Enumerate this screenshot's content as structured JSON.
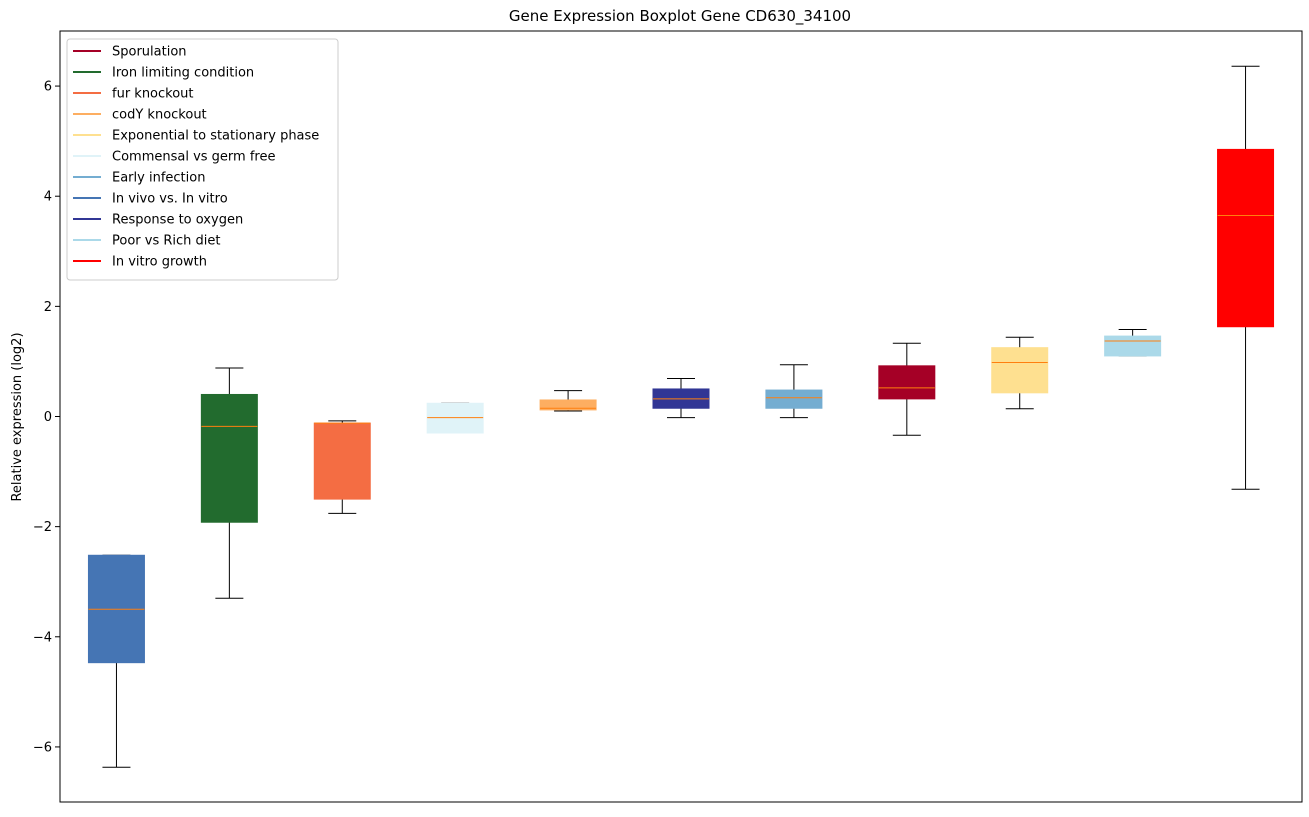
{
  "chart_data": {
    "type": "boxplot",
    "title": "Gene Expression Boxplot Gene CD630_34100",
    "xlabel": "",
    "ylabel": "Relative expression (log2)",
    "ylim": [
      -7,
      7
    ],
    "yticks": [
      -6,
      -4,
      -2,
      0,
      2,
      4,
      6
    ],
    "x_ticks_shown": false,
    "grid": false,
    "legend_placement": "upper-left",
    "median_color": "#ff7f0e",
    "legend": [
      {
        "label": "Sporulation",
        "color": "#a50026"
      },
      {
        "label": "Iron limiting condition",
        "color": "#226b2e"
      },
      {
        "label": "fur knockout",
        "color": "#f46d43"
      },
      {
        "label": "codY knockout",
        "color": "#fdae61"
      },
      {
        "label": "Exponential to stationary phase",
        "color": "#fee090"
      },
      {
        "label": "Commensal vs germ free",
        "color": "#e0f3f8"
      },
      {
        "label": "Early infection",
        "color": "#74add1"
      },
      {
        "label": "In vivo vs. In vitro",
        "color": "#4575b4"
      },
      {
        "label": "Response to oxygen",
        "color": "#313695"
      },
      {
        "label": "Poor vs Rich diet",
        "color": "#abd9e9"
      },
      {
        "label": "In vitro growth",
        "color": "#ff0000"
      }
    ],
    "boxes": [
      {
        "series": "In vivo vs. In vitro",
        "color": "#4575b4",
        "whisker_low": -6.37,
        "q1": -4.47,
        "median": -3.5,
        "q3": -2.52,
        "whisker_high": -2.52
      },
      {
        "series": "Iron limiting condition",
        "color": "#226b2e",
        "whisker_low": -3.3,
        "q1": -1.92,
        "median": -0.18,
        "q3": 0.4,
        "whisker_high": 0.88
      },
      {
        "series": "fur knockout",
        "color": "#f46d43",
        "whisker_low": -1.76,
        "q1": -1.5,
        "median": -0.12,
        "q3": -0.12,
        "whisker_high": -0.08
      },
      {
        "series": "Commensal vs germ free",
        "color": "#e0f3f8",
        "whisker_low": -0.3,
        "q1": -0.3,
        "median": -0.02,
        "q3": 0.24,
        "whisker_high": 0.24
      },
      {
        "series": "codY knockout",
        "color": "#fdae61",
        "whisker_low": 0.1,
        "q1": 0.12,
        "median": 0.15,
        "q3": 0.3,
        "whisker_high": 0.47
      },
      {
        "series": "Response to oxygen",
        "color": "#313695",
        "whisker_low": -0.02,
        "q1": 0.15,
        "median": 0.32,
        "q3": 0.5,
        "whisker_high": 0.69
      },
      {
        "series": "Early infection",
        "color": "#74add1",
        "whisker_low": -0.02,
        "q1": 0.15,
        "median": 0.34,
        "q3": 0.48,
        "whisker_high": 0.94
      },
      {
        "series": "Sporulation",
        "color": "#a50026",
        "whisker_low": -0.34,
        "q1": 0.32,
        "median": 0.52,
        "q3": 0.92,
        "whisker_high": 1.33
      },
      {
        "series": "Exponential to stationary phase",
        "color": "#fee090",
        "whisker_low": 0.14,
        "q1": 0.43,
        "median": 0.98,
        "q3": 1.25,
        "whisker_high": 1.44
      },
      {
        "series": "Poor vs Rich diet",
        "color": "#abd9e9",
        "whisker_low": 1.1,
        "q1": 1.1,
        "median": 1.37,
        "q3": 1.46,
        "whisker_high": 1.58
      },
      {
        "series": "In vitro growth",
        "color": "#ff0000",
        "whisker_low": -1.32,
        "q1": 1.63,
        "median": 3.65,
        "q3": 4.85,
        "whisker_high": 6.36
      }
    ]
  }
}
